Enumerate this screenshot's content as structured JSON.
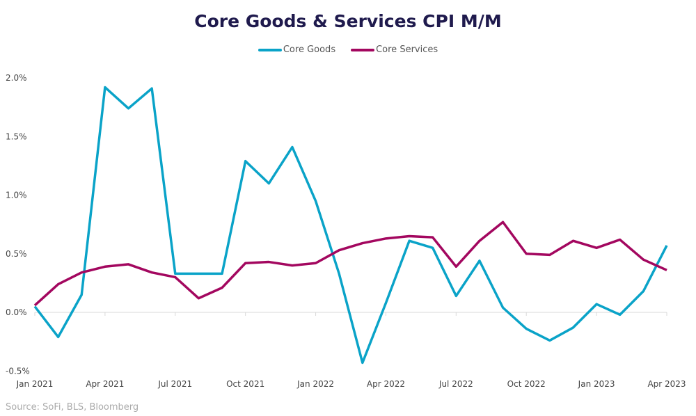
{
  "chart_data": {
    "type": "line",
    "title": "Core Goods & Services CPI M/M",
    "xlabel": "",
    "ylabel": "",
    "x": [
      "Jan 2021",
      "Feb 2021",
      "Mar 2021",
      "Apr 2021",
      "May 2021",
      "Jun 2021",
      "Jul 2021",
      "Aug 2021",
      "Sep 2021",
      "Oct 2021",
      "Nov 2021",
      "Dec 2021",
      "Jan 2022",
      "Feb 2022",
      "Mar 2022",
      "Apr 2022",
      "May 2022",
      "Jun 2022",
      "Jul 2022",
      "Aug 2022",
      "Sep 2022",
      "Oct 2022",
      "Nov 2022",
      "Dec 2022",
      "Jan 2023",
      "Feb 2023",
      "Mar 2023",
      "Apr 2023"
    ],
    "x_tick_labels": [
      "Jan 2021",
      "Apr 2021",
      "Jul 2021",
      "Oct 2021",
      "Jan 2022",
      "Apr 2022",
      "Jul 2022",
      "Oct 2022",
      "Jan 2023",
      "Apr 2023"
    ],
    "y_tick_labels": [
      "-0.5%",
      "0.0%",
      "0.5%",
      "1.0%",
      "1.5%",
      "2.0%"
    ],
    "y_ticks": [
      -0.5,
      0,
      0.5,
      1.0,
      1.5,
      2.0
    ],
    "ylim": [
      -0.5,
      2.0
    ],
    "grid": false,
    "legend_position": "top-center",
    "series": [
      {
        "name": "Core Goods",
        "color": "#0aa3c8",
        "values": [
          0.05,
          -0.21,
          0.15,
          1.92,
          1.74,
          1.91,
          0.33,
          0.33,
          0.33,
          1.29,
          1.1,
          1.41,
          0.95,
          0.33,
          -0.43,
          0.08,
          0.61,
          0.55,
          0.14,
          0.44,
          0.04,
          -0.14,
          -0.24,
          -0.13,
          0.07,
          -0.02,
          0.18,
          0.57
        ]
      },
      {
        "name": "Core Services",
        "color": "#a3075f",
        "values": [
          0.06,
          0.24,
          0.34,
          0.39,
          0.41,
          0.34,
          0.3,
          0.12,
          0.21,
          0.42,
          0.43,
          0.4,
          0.42,
          0.53,
          0.59,
          0.63,
          0.65,
          0.64,
          0.39,
          0.61,
          0.77,
          0.5,
          0.49,
          0.61,
          0.55,
          0.62,
          0.45,
          0.36
        ]
      }
    ]
  },
  "source": "Source: SoFi, BLS, Bloomberg"
}
